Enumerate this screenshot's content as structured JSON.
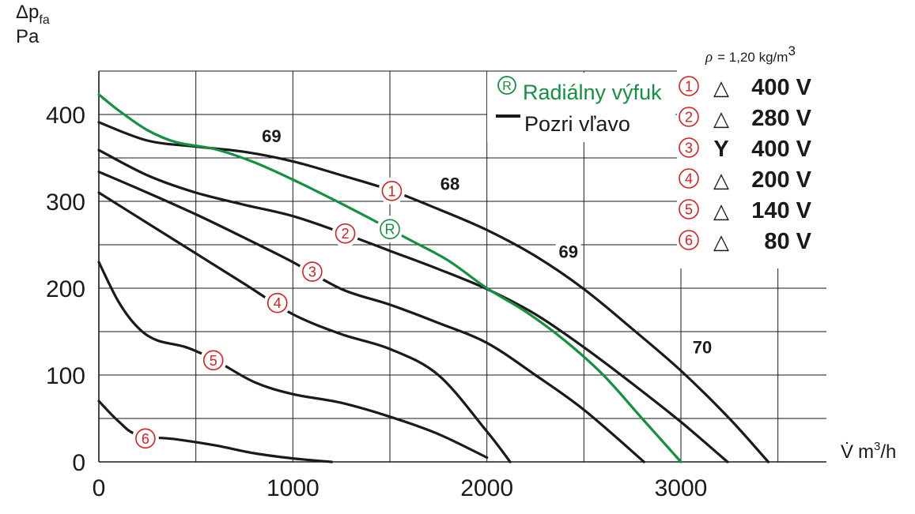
{
  "chart_data": {
    "type": "line",
    "ylabel_main": "Δp",
    "ylabel_sub": "fa",
    "ylabel_unit": "Pa",
    "xlabel_sym": "V̇",
    "xlabel_unit": "m",
    "xlabel_exp": "3",
    "xlabel_per": "/h",
    "xlim": [
      0,
      3750
    ],
    "ylim": [
      0,
      450
    ],
    "xticks": [
      0,
      1000,
      2000,
      3000
    ],
    "yticks": [
      0,
      100,
      200,
      300,
      400
    ],
    "grid": true,
    "density_symbol": "ρ",
    "density_value": "= 1,20 kg/m",
    "density_exp": "3",
    "annotations": [
      {
        "text": "69",
        "x": 890,
        "y": 370
      },
      {
        "text": "68",
        "x": 1810,
        "y": 315
      },
      {
        "text": "69",
        "x": 2420,
        "y": 237
      },
      {
        "text": "70",
        "x": 3110,
        "y": 127
      }
    ],
    "legend_green": {
      "marker": "R",
      "label": "Radiálny výfuk"
    },
    "legend_black": {
      "label": "Pozri vľavo"
    },
    "legend_voltages": [
      {
        "num": "1",
        "sym": "△",
        "label": "400 V"
      },
      {
        "num": "2",
        "sym": "△",
        "label": "280 V"
      },
      {
        "num": "3",
        "sym": "Y",
        "label": "400 V"
      },
      {
        "num": "4",
        "sym": "△",
        "label": "200 V"
      },
      {
        "num": "5",
        "sym": "△",
        "label": "140 V"
      },
      {
        "num": "6",
        "sym": "△",
        "label": "80 V"
      }
    ],
    "series": [
      {
        "marker": "1",
        "color": "#1a1a1a",
        "label_at": [
          1510,
          312
        ],
        "x": [
          0,
          250,
          500,
          750,
          1000,
          1250,
          1500,
          1750,
          2000,
          2250,
          2500,
          2750,
          3000,
          3250,
          3450
        ],
        "y": [
          391,
          370,
          363,
          357,
          346,
          330,
          313,
          291,
          267,
          237,
          199,
          153,
          105,
          50,
          0
        ]
      },
      {
        "marker": "2",
        "color": "#1a1a1a",
        "label_at": [
          1270,
          263
        ],
        "x": [
          0,
          250,
          500,
          750,
          1000,
          1250,
          1500,
          1750,
          2000,
          2250,
          2500,
          2750,
          3000,
          3240
        ],
        "y": [
          359,
          330,
          310,
          296,
          283,
          264,
          243,
          222,
          199,
          170,
          132,
          90,
          46,
          0
        ]
      },
      {
        "marker": "3",
        "color": "#1a1a1a",
        "label_at": [
          1100,
          219
        ],
        "x": [
          0,
          250,
          500,
          750,
          1000,
          1250,
          1500,
          1750,
          2000,
          2250,
          2500,
          2810
        ],
        "y": [
          334,
          310,
          285,
          258,
          230,
          199,
          181,
          160,
          137,
          100,
          60,
          0
        ]
      },
      {
        "marker": "4",
        "color": "#1a1a1a",
        "label_at": [
          920,
          183
        ],
        "x": [
          0,
          250,
          500,
          750,
          1000,
          1250,
          1500,
          1750,
          2000,
          2120
        ],
        "y": [
          310,
          275,
          240,
          205,
          170,
          147,
          130,
          100,
          35,
          0
        ]
      },
      {
        "marker": "5",
        "color": "#1a1a1a",
        "label_at": [
          590,
          117
        ],
        "x": [
          0,
          100,
          200,
          300,
          450,
          600,
          800,
          1000,
          1250,
          1500,
          1750,
          2000
        ],
        "y": [
          230,
          185,
          155,
          140,
          132,
          117,
          92,
          78,
          68,
          52,
          32,
          5
        ]
      },
      {
        "marker": "6",
        "color": "#1a1a1a",
        "label_at": [
          240,
          27
        ],
        "x": [
          0,
          100,
          200,
          400,
          600,
          800,
          1000,
          1200
        ],
        "y": [
          70,
          47,
          31,
          26,
          19,
          10,
          4,
          0
        ]
      },
      {
        "marker": "R",
        "color": "#149040",
        "label_at": [
          1500,
          268
        ],
        "x": [
          0,
          100,
          250,
          400,
          600,
          800,
          1000,
          1200,
          1400,
          1600,
          1800,
          2000,
          2200,
          2400,
          2600,
          2800,
          3000
        ],
        "y": [
          423,
          405,
          382,
          368,
          360,
          345,
          325,
          303,
          280,
          256,
          232,
          200,
          173,
          140,
          100,
          50,
          0
        ]
      }
    ]
  }
}
